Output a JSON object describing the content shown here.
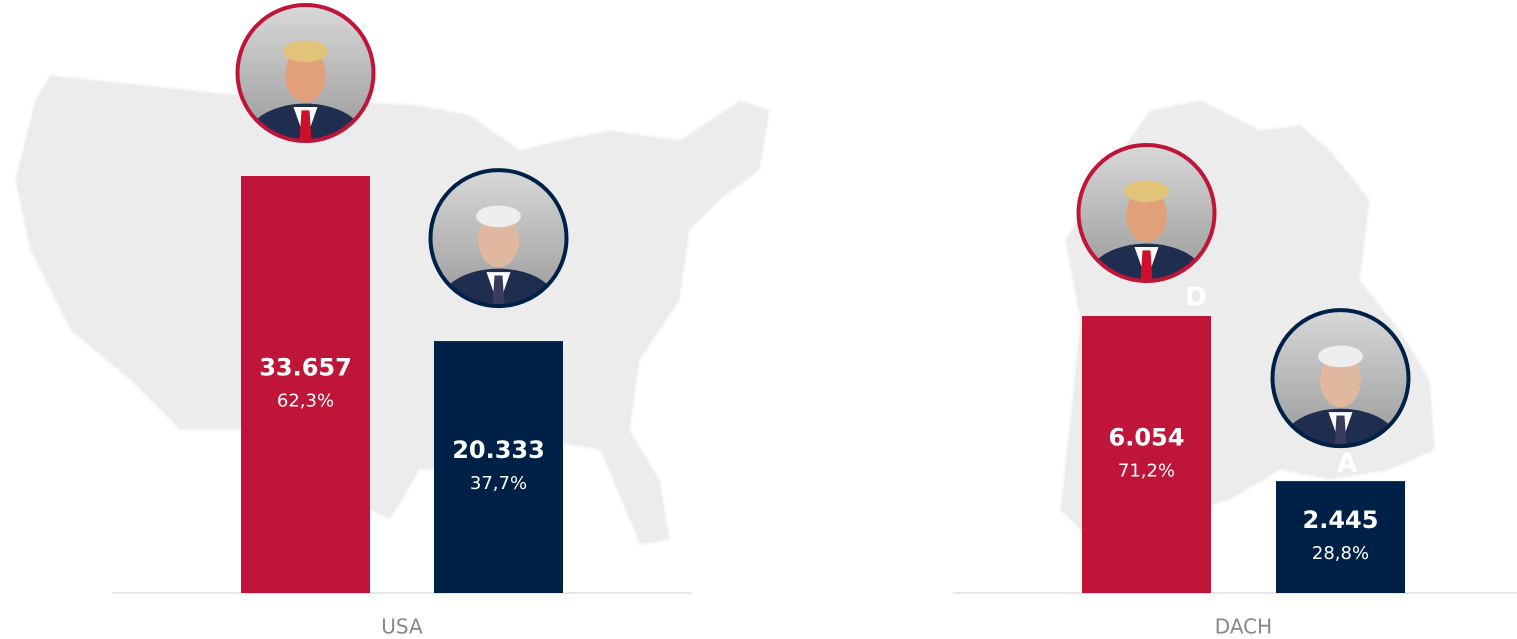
{
  "chart_data": [
    {
      "type": "bar",
      "categories": [
        "USA"
      ],
      "series": [
        {
          "color": "#be1538",
          "values": [
            33657
          ],
          "value_labels": [
            "33.657"
          ],
          "shares": [
            62.3
          ],
          "share_labels": [
            "62,3%"
          ]
        },
        {
          "color": "#002147",
          "values": [
            20333
          ],
          "value_labels": [
            "20.333"
          ],
          "shares": [
            37.7
          ],
          "share_labels": [
            "37,7%"
          ]
        }
      ]
    },
    {
      "type": "bar",
      "categories": [
        "DACH"
      ],
      "series": [
        {
          "color": "#be1538",
          "values": [
            6054
          ],
          "value_labels": [
            "6.054"
          ],
          "shares": [
            71.2
          ],
          "share_labels": [
            "71,2%"
          ]
        },
        {
          "color": "#002147",
          "values": [
            2445
          ],
          "value_labels": [
            "2.445"
          ],
          "shares": [
            28.8
          ],
          "share_labels": [
            "28,8%"
          ]
        }
      ]
    }
  ]
}
